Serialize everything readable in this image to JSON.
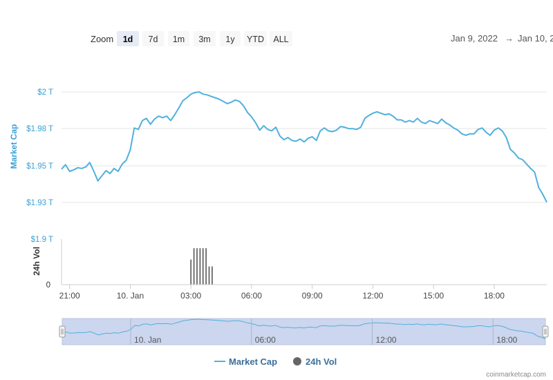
{
  "toolbar": {
    "zoom_label": "Zoom",
    "buttons": [
      {
        "label": "1d",
        "active": true
      },
      {
        "label": "7d",
        "active": false
      },
      {
        "label": "1m",
        "active": false
      },
      {
        "label": "3m",
        "active": false
      },
      {
        "label": "1y",
        "active": false
      },
      {
        "label": "YTD",
        "active": false
      },
      {
        "label": "ALL",
        "active": false
      }
    ],
    "range_from": "Jan 9, 2022",
    "range_arrow": "→",
    "range_to": "Jan 10, 2"
  },
  "legend": {
    "market_cap": "Market Cap",
    "volume": "24h Vol"
  },
  "credit": "coinmarketcap.com",
  "colors": {
    "market_cap_line": "#4fb0dd",
    "volume_bar": "#555555",
    "navigator_fill": "#ccd6ee",
    "navigator_line": "#4fb0dd",
    "y_axis_label": "#3aa0d6"
  },
  "chart_data": {
    "type": "line",
    "ylabel": "Market Cap",
    "y_ticks": [
      "$2 T",
      "$1.98 T",
      "$1.95 T",
      "$1.93 T",
      "$1.9 T"
    ],
    "y_range": [
      1.9,
      2.0
    ],
    "x_ticks": [
      "21:00",
      "10. Jan",
      "03:00",
      "06:00",
      "09:00",
      "12:00",
      "15:00",
      "18:00"
    ],
    "x_tick_hours": [
      21,
      24,
      27,
      30,
      33,
      36,
      39,
      42
    ],
    "x_range_hours": [
      20.6,
      44.6
    ],
    "series": [
      {
        "name": "Market Cap",
        "x_hours": [
          20.6,
          20.8,
          21.0,
          21.2,
          21.4,
          21.6,
          21.8,
          22.0,
          22.2,
          22.4,
          22.6,
          22.8,
          23.0,
          23.2,
          23.4,
          23.6,
          23.8,
          24.0,
          24.2,
          24.4,
          24.6,
          24.8,
          25.0,
          25.2,
          25.4,
          25.6,
          25.8,
          26.0,
          26.2,
          26.4,
          26.6,
          26.8,
          27.0,
          27.2,
          27.4,
          27.6,
          27.8,
          28.0,
          28.2,
          28.4,
          28.6,
          28.8,
          29.0,
          29.2,
          29.4,
          29.6,
          29.8,
          30.0,
          30.2,
          30.4,
          30.6,
          30.8,
          31.0,
          31.2,
          31.4,
          31.6,
          31.8,
          32.0,
          32.2,
          32.4,
          32.6,
          32.8,
          33.0,
          33.2,
          33.4,
          33.6,
          33.8,
          34.0,
          34.2,
          34.4,
          34.6,
          34.8,
          35.0,
          35.2,
          35.4,
          35.6,
          35.8,
          36.0,
          36.2,
          36.4,
          36.6,
          36.8,
          37.0,
          37.2,
          37.4,
          37.6,
          37.8,
          38.0,
          38.2,
          38.4,
          38.6,
          38.8,
          39.0,
          39.2,
          39.4,
          39.6,
          39.8,
          40.0,
          40.2,
          40.4,
          40.6,
          40.8,
          41.0,
          41.2,
          41.4,
          41.6,
          41.8,
          42.0,
          42.2,
          42.4,
          42.6,
          42.8,
          43.0,
          43.2,
          43.4,
          43.6,
          43.8,
          44.0,
          44.2,
          44.4,
          44.6
        ],
        "values": [
          1.9475,
          1.9505,
          1.946,
          1.947,
          1.9485,
          1.948,
          1.949,
          1.952,
          1.946,
          1.9395,
          1.943,
          1.9465,
          1.9445,
          1.948,
          1.946,
          1.951,
          1.9535,
          1.9605,
          1.9755,
          1.9745,
          1.9805,
          1.982,
          1.978,
          1.9815,
          1.9835,
          1.9825,
          1.9835,
          1.9805,
          1.9845,
          1.989,
          1.994,
          1.996,
          1.9985,
          1.9995,
          2.0,
          1.9985,
          1.998,
          1.997,
          1.996,
          1.995,
          1.9935,
          1.992,
          1.993,
          1.9945,
          1.9935,
          1.9905,
          1.986,
          1.983,
          1.979,
          1.974,
          1.977,
          1.9745,
          1.9735,
          1.976,
          1.97,
          1.9675,
          1.969,
          1.967,
          1.9665,
          1.968,
          1.966,
          1.9685,
          1.9695,
          1.967,
          1.9735,
          1.9755,
          1.9735,
          1.973,
          1.974,
          1.9765,
          1.976,
          1.975,
          1.975,
          1.9745,
          1.976,
          1.982,
          1.984,
          1.9855,
          1.9865,
          1.9855,
          1.9845,
          1.985,
          1.9835,
          1.981,
          1.981,
          1.9795,
          1.9805,
          1.9795,
          1.982,
          1.9795,
          1.9785,
          1.9805,
          1.9795,
          1.9785,
          1.9815,
          1.979,
          1.9775,
          1.9755,
          1.974,
          1.9715,
          1.9705,
          1.9715,
          1.9715,
          1.9745,
          1.9755,
          1.9725,
          1.9705,
          1.974,
          1.9755,
          1.9735,
          1.969,
          1.961,
          1.9585,
          1.955,
          1.954,
          1.951,
          1.948,
          1.9455,
          1.935,
          1.9305,
          1.925
        ]
      }
    ],
    "volume": {
      "name": "24h Vol",
      "ylabel": "24h Vol",
      "y_ticks": [
        "0"
      ],
      "x_hours": [
        27.0,
        27.15,
        27.3,
        27.45,
        27.6,
        27.75,
        27.9,
        28.05
      ],
      "values": [
        0.55,
        0.8,
        0.8,
        0.8,
        0.8,
        0.8,
        0.4,
        0.4
      ]
    },
    "navigator": {
      "x_ticks": [
        "10. Jan",
        "06:00",
        "12:00",
        "18:00"
      ],
      "x_tick_hours": [
        24,
        30,
        36,
        42
      ]
    },
    "grid": true,
    "legend_position": "bottom-center"
  }
}
